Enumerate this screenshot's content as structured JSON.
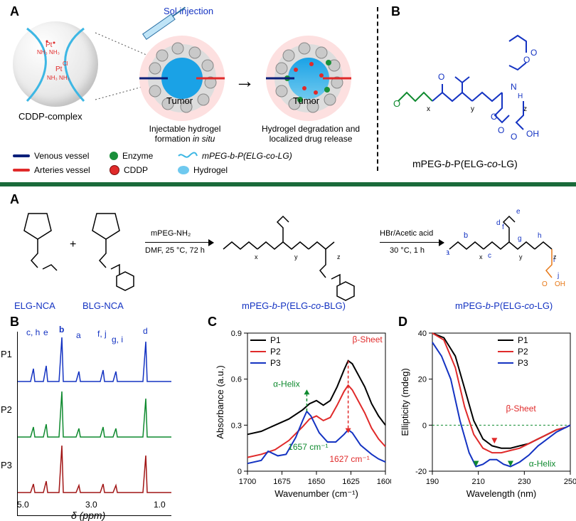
{
  "topA": {
    "label": "A",
    "sol_injection": "Sol injection",
    "complex_label": "CDDP-complex",
    "tumor_label": "Tumor",
    "caption_left": "Injectable hydrogel formation",
    "caption_left_em": "in situ",
    "caption_right": "Hydrogel degradation and localized drug release",
    "legend": {
      "venous": "Venous vessel",
      "arteries": "Arteries vessel",
      "enzyme": "Enzyme",
      "cddp": "CDDP",
      "polymer": "mPEG-b-P(ELG-co-LG)",
      "hydrogel": "Hydrogel"
    }
  },
  "topB": {
    "label": "B",
    "name": "mPEG-b-P(ELG-co-LG)"
  },
  "colors": {
    "venous": "#0b1f7a",
    "arteries": "#e02a2a",
    "enzyme": "#1a8f3a",
    "cddp": "#e02a2a",
    "cddp_border": "#7a1010",
    "polymer": "#3db7e4",
    "hydrogel": "#3db7e4",
    "tumor_bg": "#fde0e0",
    "blue": "#1433c2",
    "green": "#0f8a2f",
    "orange": "#e77817",
    "p1": "#000000",
    "p2": "#e02a2a",
    "p2nmr": "#0f8a2f",
    "p3": "#1433c2",
    "p3nmr": "#a11515"
  },
  "bottomA": {
    "label": "A",
    "elg": "ELG-NCA",
    "blg": "BLG-NCA",
    "step1_reagent": "mPEG-NH₂",
    "step1_cond": "DMF, 25 °C, 72 h",
    "inter": "mPEG-b-P(ELG-co-BLG)",
    "step2_reagent": "HBr/Acetic acid",
    "step2_cond": "30 °C, 1 h",
    "final": "mPEG-b-P(ELG-co-LG)",
    "atom_labels": [
      "a",
      "b",
      "c",
      "d",
      "e",
      "f",
      "g",
      "h",
      "i",
      "j"
    ]
  },
  "nmr": {
    "label": "B",
    "rows": [
      "P1",
      "P2",
      "P3"
    ],
    "xaxis": "δ (ppm)",
    "ticks": [
      "5.0",
      "3.0",
      "1.0"
    ],
    "ann": {
      "ch": "c, h",
      "e": "e",
      "b": "b",
      "a": "a",
      "fj": "f, j",
      "gi": "g, i",
      "d": "d"
    }
  },
  "chartC": {
    "label": "C",
    "type": "line",
    "xaxis": "Wavenumber (cm⁻¹)",
    "yaxis": "Absorbance (a.u.)",
    "xlim": [
      1700,
      1600
    ],
    "ylim": [
      0,
      0.9
    ],
    "xticks": [
      1700,
      1675,
      1650,
      1625,
      1600
    ],
    "yticks": [
      0,
      0.3,
      0.6,
      0.9
    ],
    "series": [
      {
        "name": "P1",
        "color": "#000000",
        "x": [
          1700,
          1690,
          1680,
          1670,
          1660,
          1655,
          1650,
          1645,
          1640,
          1635,
          1630,
          1627,
          1624,
          1615,
          1610,
          1605,
          1600
        ],
        "y": [
          0.24,
          0.26,
          0.3,
          0.34,
          0.4,
          0.44,
          0.46,
          0.43,
          0.46,
          0.55,
          0.66,
          0.72,
          0.7,
          0.55,
          0.44,
          0.36,
          0.3
        ]
      },
      {
        "name": "P2",
        "color": "#e02a2a",
        "x": [
          1700,
          1690,
          1680,
          1670,
          1660,
          1655,
          1650,
          1645,
          1640,
          1635,
          1630,
          1627,
          1624,
          1615,
          1610,
          1605,
          1600
        ],
        "y": [
          0.09,
          0.11,
          0.14,
          0.2,
          0.29,
          0.34,
          0.36,
          0.33,
          0.35,
          0.43,
          0.52,
          0.56,
          0.53,
          0.38,
          0.28,
          0.21,
          0.16
        ]
      },
      {
        "name": "P3",
        "color": "#1433c2",
        "x": [
          1700,
          1690,
          1685,
          1678,
          1672,
          1665,
          1660,
          1657,
          1654,
          1648,
          1642,
          1636,
          1630,
          1627,
          1624,
          1618,
          1610,
          1605,
          1600
        ],
        "y": [
          0.05,
          0.07,
          0.13,
          0.1,
          0.11,
          0.22,
          0.33,
          0.39,
          0.36,
          0.25,
          0.19,
          0.19,
          0.24,
          0.27,
          0.25,
          0.17,
          0.11,
          0.08,
          0.06
        ]
      }
    ],
    "ann_alpha": "α-Helix",
    "ann_beta": "β-Sheet",
    "ann_1657": "1657 cm⁻¹",
    "ann_1627": "1627 cm⁻¹"
  },
  "chartD": {
    "label": "D",
    "type": "line",
    "xaxis": "Wavelength (nm)",
    "yaxis": "Ellipticity (mdeg)",
    "xlim": [
      190,
      250
    ],
    "ylim": [
      -20,
      40
    ],
    "xticks": [
      190,
      210,
      230,
      250
    ],
    "yticks": [
      -20,
      0,
      20,
      40
    ],
    "series": [
      {
        "name": "P1",
        "color": "#000000",
        "x": [
          190,
          195,
          200,
          204,
          208,
          212,
          216,
          220,
          224,
          228,
          232,
          236,
          240,
          244,
          248,
          250
        ],
        "y": [
          40,
          38,
          30,
          16,
          2,
          -6,
          -9,
          -10,
          -10,
          -9,
          -8,
          -6,
          -4,
          -2,
          -1,
          0
        ]
      },
      {
        "name": "P2",
        "color": "#e02a2a",
        "x": [
          190,
          195,
          200,
          204,
          208,
          212,
          216,
          220,
          224,
          228,
          232,
          236,
          240,
          244,
          248,
          250
        ],
        "y": [
          40,
          37,
          25,
          8,
          -4,
          -10,
          -12,
          -12,
          -11,
          -10,
          -8,
          -6,
          -4,
          -2,
          -1,
          0
        ]
      },
      {
        "name": "P3",
        "color": "#1433c2",
        "x": [
          190,
          194,
          198,
          202,
          206,
          209,
          212,
          215,
          218,
          221,
          224,
          228,
          232,
          236,
          240,
          244,
          248,
          250
        ],
        "y": [
          36,
          30,
          20,
          2,
          -12,
          -18,
          -17,
          -15,
          -15,
          -17,
          -18,
          -16,
          -13,
          -9,
          -6,
          -3,
          -1,
          0
        ]
      }
    ],
    "ann_alpha": "α-Helix",
    "ann_beta": "β-Sheet"
  }
}
